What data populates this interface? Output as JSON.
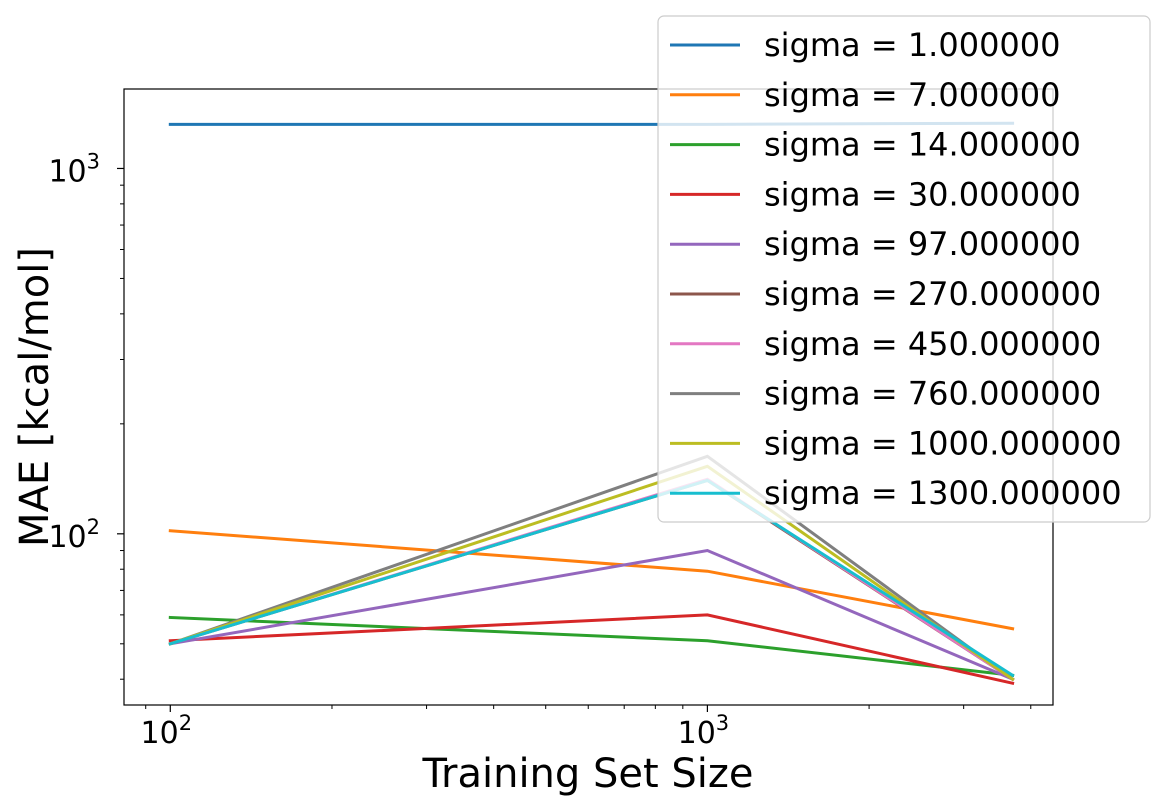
{
  "chart_data": {
    "type": "line",
    "xlabel": "Training Set Size",
    "ylabel": "MAE [kcal/mol]",
    "xscale": "log",
    "yscale": "log",
    "xlim": [
      82,
      4400
    ],
    "ylim": [
      34,
      1650
    ],
    "grid": false,
    "legend_position": "top-right",
    "x_ticks": [
      {
        "value": 100,
        "base": "10",
        "exp": "2"
      },
      {
        "value": 1000,
        "base": "10",
        "exp": "3"
      }
    ],
    "y_ticks": [
      {
        "value": 100,
        "base": "10",
        "exp": "2"
      },
      {
        "value": 1000,
        "base": "10",
        "exp": "3"
      }
    ],
    "x": [
      100,
      1000,
      3700
    ],
    "series": [
      {
        "name": "sigma = 1.000000",
        "color": "#1f77b4",
        "values": [
          1320,
          1320,
          1330
        ]
      },
      {
        "name": "sigma = 7.000000",
        "color": "#ff7f0e",
        "values": [
          102,
          79,
          55
        ]
      },
      {
        "name": "sigma = 14.000000",
        "color": "#2ca02c",
        "values": [
          59,
          51,
          41
        ]
      },
      {
        "name": "sigma = 30.000000",
        "color": "#d62728",
        "values": [
          51,
          60,
          39
        ]
      },
      {
        "name": "sigma = 97.000000",
        "color": "#9467bd",
        "values": [
          50,
          90,
          40
        ]
      },
      {
        "name": "sigma = 270.000000",
        "color": "#8c564b",
        "values": [
          50,
          140,
          40
        ]
      },
      {
        "name": "sigma = 450.000000",
        "color": "#e377c2",
        "values": [
          50,
          141,
          40
        ]
      },
      {
        "name": "sigma = 760.000000",
        "color": "#7f7f7f",
        "values": [
          50,
          163,
          40
        ]
      },
      {
        "name": "sigma = 1000.000000",
        "color": "#bcbd22",
        "values": [
          50,
          153,
          40
        ]
      },
      {
        "name": "sigma = 1300.000000",
        "color": "#17becf",
        "values": [
          50,
          140,
          41
        ]
      }
    ]
  }
}
